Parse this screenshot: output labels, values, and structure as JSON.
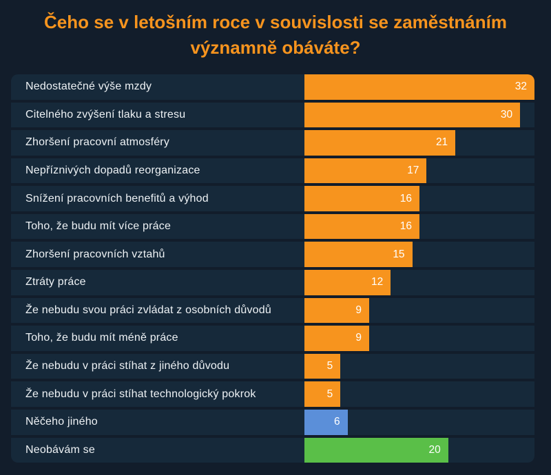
{
  "title": "Čeho se v letošním roce v souvislosti se zaměstnáním významně obáváte?",
  "colors": {
    "page_background": "#121d2b",
    "row_background": "#16293a",
    "title_text": "#f7941e",
    "label_text": "#eef2f5",
    "value_text": "#ffffff",
    "bar_orange": "#f7941e",
    "bar_blue": "#5b8fd9",
    "bar_green": "#5abf48"
  },
  "chart_data": {
    "type": "bar",
    "orientation": "horizontal",
    "title": "Čeho se v letošním roce v souvislosti se zaměstnáním významně obáváte?",
    "xlim": [
      0,
      32
    ],
    "grid": false,
    "legend": false,
    "value_labels": "inside-end",
    "items": [
      {
        "label": "Nedostatečné výše mzdy",
        "value": 32,
        "color": "#f7941e"
      },
      {
        "label": "Citelného zvýšení tlaku a stresu",
        "value": 30,
        "color": "#f7941e"
      },
      {
        "label": "Zhoršení pracovní atmosféry",
        "value": 21,
        "color": "#f7941e"
      },
      {
        "label": "Nepříznivých dopadů reorganizace",
        "value": 17,
        "color": "#f7941e"
      },
      {
        "label": "Snížení pracovních benefitů a výhod",
        "value": 16,
        "color": "#f7941e"
      },
      {
        "label": "Toho, že budu mít více práce",
        "value": 16,
        "color": "#f7941e"
      },
      {
        "label": "Zhoršení pracovních vztahů",
        "value": 15,
        "color": "#f7941e"
      },
      {
        "label": "Ztráty práce",
        "value": 12,
        "color": "#f7941e"
      },
      {
        "label": "Že nebudu svou práci zvládat z osobních důvodů",
        "value": 9,
        "color": "#f7941e"
      },
      {
        "label": "Toho, že budu mít méně práce",
        "value": 9,
        "color": "#f7941e"
      },
      {
        "label": "Že nebudu v práci stíhat z jiného důvodu",
        "value": 5,
        "color": "#f7941e"
      },
      {
        "label": "Že nebudu v práci stíhat technologický pokrok",
        "value": 5,
        "color": "#f7941e"
      },
      {
        "label": "Něčeho jiného",
        "value": 6,
        "color": "#5b8fd9"
      },
      {
        "label": "Neobávám se",
        "value": 20,
        "color": "#5abf48"
      }
    ]
  }
}
